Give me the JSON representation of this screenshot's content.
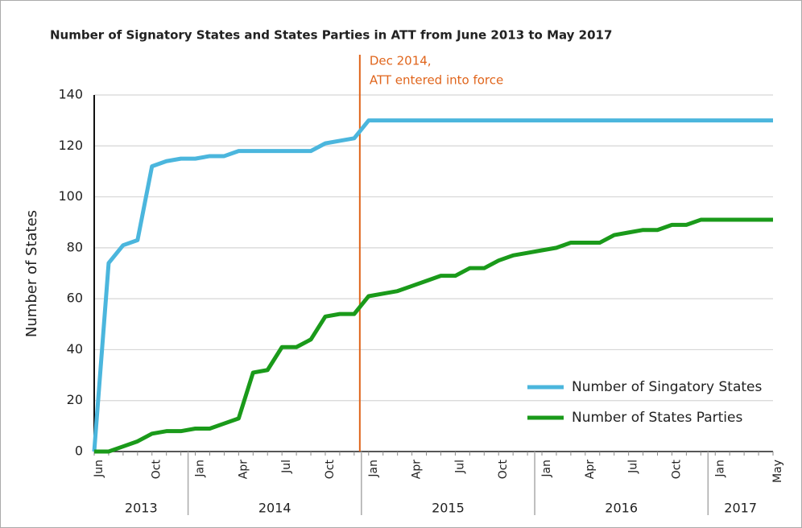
{
  "chart_data": {
    "type": "line",
    "title": "Number of Signatory States and States Parties in ATT from June 2013 to May 2017",
    "y_label": "Number of States",
    "x": [
      "2013-06",
      "2013-07",
      "2013-08",
      "2013-09",
      "2013-10",
      "2013-11",
      "2013-12",
      "2014-01",
      "2014-02",
      "2014-03",
      "2014-04",
      "2014-05",
      "2014-06",
      "2014-07",
      "2014-08",
      "2014-09",
      "2014-10",
      "2014-11",
      "2014-12",
      "2015-01",
      "2015-02",
      "2015-03",
      "2015-04",
      "2015-05",
      "2015-06",
      "2015-07",
      "2015-08",
      "2015-09",
      "2015-10",
      "2015-11",
      "2015-12",
      "2016-01",
      "2016-02",
      "2016-03",
      "2016-04",
      "2016-05",
      "2016-06",
      "2016-07",
      "2016-08",
      "2016-09",
      "2016-10",
      "2016-11",
      "2016-12",
      "2017-01",
      "2017-02",
      "2017-03",
      "2017-04",
      "2017-05"
    ],
    "xticks": [
      {
        "value": "2013-06",
        "label": "Jun"
      },
      {
        "value": "2013-10",
        "label": "Oct"
      },
      {
        "value": "2014-01",
        "label": "Jan"
      },
      {
        "value": "2014-04",
        "label": "Apr"
      },
      {
        "value": "2014-07",
        "label": "Jul"
      },
      {
        "value": "2014-10",
        "label": "Oct"
      },
      {
        "value": "2015-01",
        "label": "Jan"
      },
      {
        "value": "2015-04",
        "label": "Apr"
      },
      {
        "value": "2015-07",
        "label": "Jul"
      },
      {
        "value": "2015-10",
        "label": "Oct"
      },
      {
        "value": "2016-01",
        "label": "Jan"
      },
      {
        "value": "2016-04",
        "label": "Apr"
      },
      {
        "value": "2016-07",
        "label": "Jul"
      },
      {
        "value": "2016-10",
        "label": "Oct"
      },
      {
        "value": "2017-01",
        "label": "Jan"
      },
      {
        "value": "2017-05",
        "label": "May"
      }
    ],
    "years": [
      "2013",
      "2014",
      "2015",
      "2016",
      "2017"
    ],
    "ylim": [
      0,
      140
    ],
    "yticks": [
      0,
      20,
      40,
      60,
      80,
      100,
      120,
      140
    ],
    "grid": true,
    "legend": "lower right",
    "series": [
      {
        "name": "Number of Singatory States",
        "color": "#4bb6dd",
        "values": [
          0,
          74,
          81,
          83,
          112,
          114,
          115,
          115,
          116,
          116,
          118,
          118,
          118,
          118,
          118,
          118,
          121,
          122,
          123,
          130,
          130,
          130,
          130,
          130,
          130,
          130,
          130,
          130,
          130,
          130,
          130,
          130,
          130,
          130,
          130,
          130,
          130,
          130,
          130,
          130,
          130,
          130,
          130,
          130,
          130,
          130,
          130,
          130
        ]
      },
      {
        "name": "Number of States Parties",
        "color": "#1a9a1a",
        "values": [
          0,
          0,
          2,
          4,
          7,
          8,
          8,
          9,
          9,
          11,
          13,
          31,
          32,
          41,
          41,
          44,
          53,
          54,
          54,
          61,
          62,
          63,
          65,
          67,
          69,
          69,
          72,
          72,
          75,
          77,
          78,
          79,
          80,
          82,
          82,
          82,
          85,
          86,
          87,
          87,
          89,
          89,
          91,
          91,
          91,
          91,
          91,
          91
        ]
      }
    ],
    "annotation": {
      "x": "2014-12",
      "text": [
        "Dec 2014,",
        "ATT entered into force"
      ],
      "color": "#e0651c"
    }
  }
}
